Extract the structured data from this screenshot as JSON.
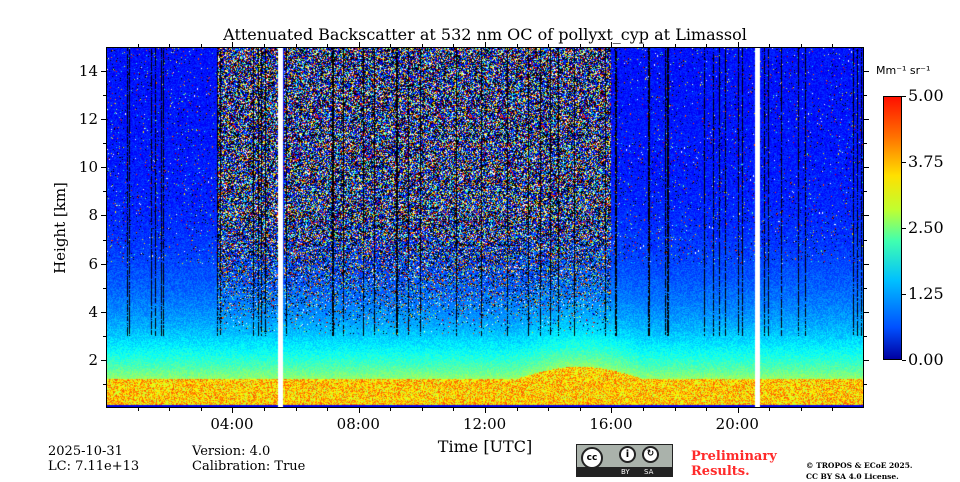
{
  "chart_data": {
    "type": "heatmap",
    "title": "Attenuated Backscatter at 532 nm OC of pollyxt_cyp at Limassol",
    "xlabel": "Time [UTC]",
    "ylabel": "Height [km]",
    "xlim_hours": [
      0,
      24
    ],
    "ylim_km": [
      0,
      15
    ],
    "x_ticks": [
      {
        "v": 4,
        "label": "04:00"
      },
      {
        "v": 8,
        "label": "08:00"
      },
      {
        "v": 12,
        "label": "12:00"
      },
      {
        "v": 16,
        "label": "16:00"
      },
      {
        "v": 20,
        "label": "20:00"
      }
    ],
    "y_ticks": [
      {
        "v": 2,
        "label": "2"
      },
      {
        "v": 4,
        "label": "4"
      },
      {
        "v": 6,
        "label": "6"
      },
      {
        "v": 8,
        "label": "8"
      },
      {
        "v": 10,
        "label": "10"
      },
      {
        "v": 12,
        "label": "12"
      },
      {
        "v": 14,
        "label": "14"
      }
    ],
    "colorbar": {
      "unit": "Mm⁻¹ sr⁻¹",
      "range": [
        0,
        5
      ],
      "ticks": [
        "0.00",
        "1.25",
        "2.50",
        "3.75",
        "5.00"
      ],
      "colormap": "jet"
    },
    "data_gaps_hours": [
      5.5,
      20.6
    ],
    "boundary_layer_top_km": 1.2
  },
  "meta": {
    "date": "2025-10-31",
    "lc": "LC: 7.11e+13",
    "version": "Version: 4.0",
    "calibration": "Calibration: True"
  },
  "license": {
    "badge": "CC BY SA",
    "by": "BY",
    "sa": "SA",
    "preliminary_line1": "Preliminary",
    "preliminary_line2": "Results.",
    "copyright_line1": "© TROPOS & ECoE 2025.",
    "copyright_line2": "CC BY SA 4.0 License."
  }
}
